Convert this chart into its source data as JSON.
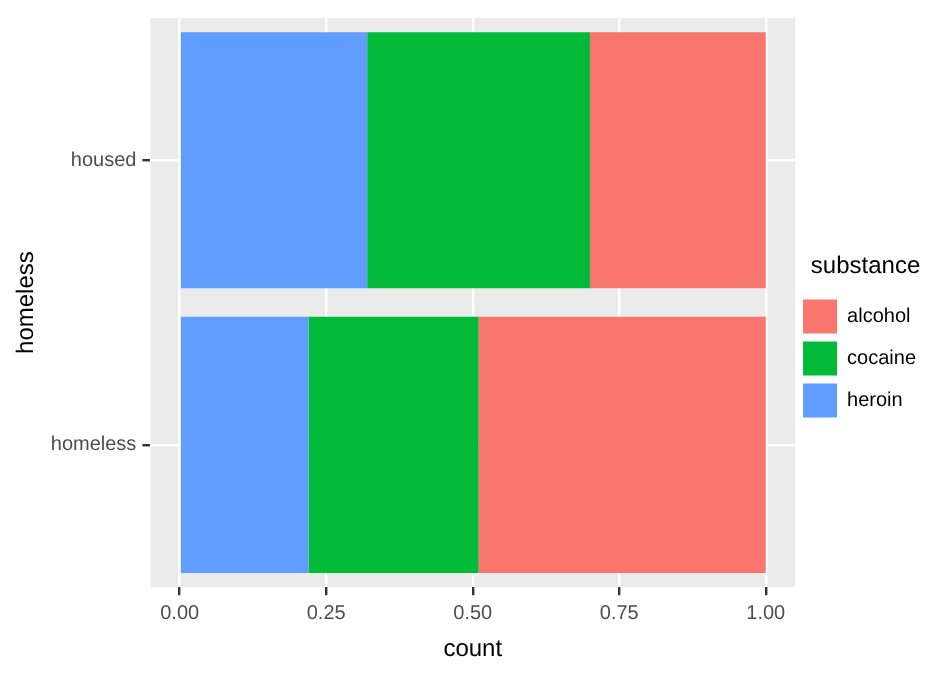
{
  "chart_data": {
    "type": "bar",
    "orientation": "horizontal",
    "stacked": true,
    "xlabel": "count",
    "ylabel": "homeless",
    "legend_title": "substance",
    "legend": "right",
    "grid": true,
    "categories": [
      "housed",
      "homeless"
    ],
    "xlim": [
      -0.05,
      1.05
    ],
    "xticks": [
      {
        "value": 0,
        "label": "0.00"
      },
      {
        "value": 0.25,
        "label": "0.25"
      },
      {
        "value": 0.5,
        "label": "0.50"
      },
      {
        "value": 0.75,
        "label": "0.75"
      },
      {
        "value": 1,
        "label": "1.00"
      }
    ],
    "series": [
      {
        "name": "heroin",
        "color": "#619cff",
        "values": [
          0.32,
          0.22
        ]
      },
      {
        "name": "cocaine",
        "color": "#00ba38",
        "values": [
          0.38,
          0.29
        ]
      },
      {
        "name": "alcohol",
        "color": "#f8766d",
        "values": [
          0.3,
          0.49
        ]
      }
    ]
  }
}
